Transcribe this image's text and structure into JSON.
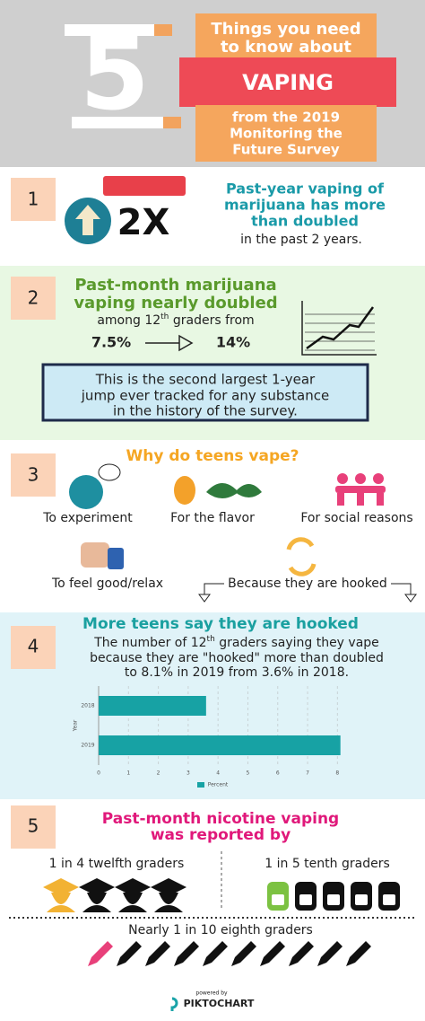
{
  "header": {
    "number": "5",
    "lines": [
      "Things you need",
      "to know about"
    ],
    "highlight": "VAPING",
    "source_lines": [
      "from the 2019",
      "Monitoring the",
      "Future Survey"
    ]
  },
  "section1": {
    "number": "1",
    "badge": "2X",
    "heading": [
      "Past-year vaping of",
      "marijuana has more",
      "than doubled"
    ],
    "text": "in the past 2 years."
  },
  "section2": {
    "number": "2",
    "heading": [
      "Past-month marijuana",
      "vaping nearly doubled"
    ],
    "text": {
      "before": "among 12",
      "sup": "th",
      "after": " graders from"
    },
    "from": "7.5%",
    "to": "14%",
    "note": [
      "This is the second largest 1-year",
      "jump ever tracked for any substance",
      "in the history of the survey."
    ]
  },
  "section3": {
    "number": "3",
    "heading": "Why do teens vape?",
    "reasons": [
      "To experiment",
      "For the flavor",
      "For social reasons",
      "To feel good/relax",
      "Because they are hooked"
    ]
  },
  "section4": {
    "number": "4",
    "heading": "More teens say they are hooked",
    "text_first": {
      "before": "The number of 12",
      "sup": "th",
      "after": " graders saying they vape"
    },
    "text": [
      "because they are \"hooked\" more than doubled",
      "to 8.1% in 2019 from 3.6% in 2018."
    ]
  },
  "chart_data": {
    "type": "bar",
    "orientation": "horizontal",
    "categories": [
      "2018",
      "2019"
    ],
    "values": [
      3.6,
      8.1
    ],
    "color": "#17a2a4",
    "xlim": [
      0,
      8.2
    ],
    "xticks": [
      0,
      1,
      2,
      3,
      4,
      5,
      6,
      7,
      8
    ],
    "ylabel": "Year",
    "legend": "Percent",
    "grid": true
  },
  "section5": {
    "number": "5",
    "heading": [
      "Past-month nicotine vaping",
      "was reported by"
    ],
    "left": "1 in 4 twelfth graders",
    "right": "1 in 5 tenth graders",
    "bottom": "Nearly 1 in 10 eighth graders"
  },
  "footer": {
    "powered": "powered by",
    "brand": "PIKTOCHART"
  }
}
